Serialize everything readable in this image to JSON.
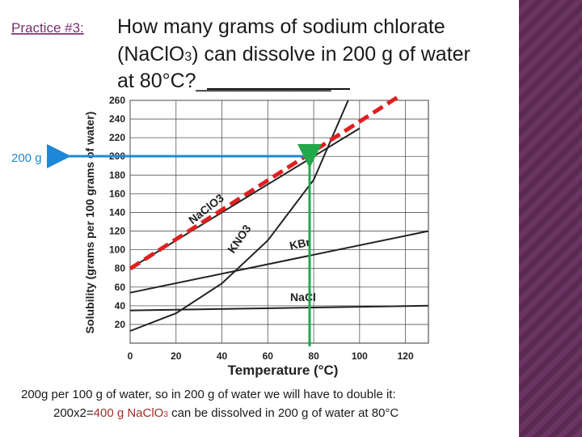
{
  "slide": {
    "label": "Practice #3:",
    "question": [
      [
        "How many grams of sodium chlorate"
      ],
      [
        "(NaClO",
        "3",
        ") can dissolve in 200 g of water"
      ],
      [
        "at 80°C?____________"
      ]
    ],
    "answer": [
      [
        "200g per 100 g of water, so in 200 g of water we will have to double it:"
      ],
      [
        "200x2=",
        "400 g NaClO",
        "3",
        " can be dissolved in 200 g of water at 80°C"
      ]
    ],
    "arrow_label": "200 g"
  },
  "chart_data": {
    "type": "line",
    "x_label": "Temperature (°C)",
    "y_label": "Solubility (grams per 100 grams of water)",
    "xlim": [
      0,
      130
    ],
    "ylim": [
      0,
      260
    ],
    "xticks": [
      0,
      20,
      40,
      60,
      80,
      100,
      120
    ],
    "yticks": [
      20,
      40,
      60,
      80,
      100,
      120,
      140,
      160,
      180,
      200,
      220,
      240,
      260
    ],
    "grid": true,
    "series": [
      {
        "name": "NaClO3",
        "color": "#222222",
        "x": [
          0,
          20,
          40,
          60,
          80,
          100
        ],
        "values": [
          80,
          110,
          140,
          170,
          200,
          230
        ]
      },
      {
        "name": "KNO3",
        "color": "#222222",
        "x": [
          0,
          20,
          40,
          60,
          80,
          95
        ],
        "values": [
          13,
          32,
          64,
          110,
          175,
          260
        ]
      },
      {
        "name": "KBr",
        "color": "#222222",
        "x": [
          0,
          130
        ],
        "values": [
          54,
          120
        ]
      },
      {
        "name": "NaCl",
        "color": "#222222",
        "x": [
          0,
          130
        ],
        "values": [
          35,
          40
        ]
      }
    ]
  }
}
